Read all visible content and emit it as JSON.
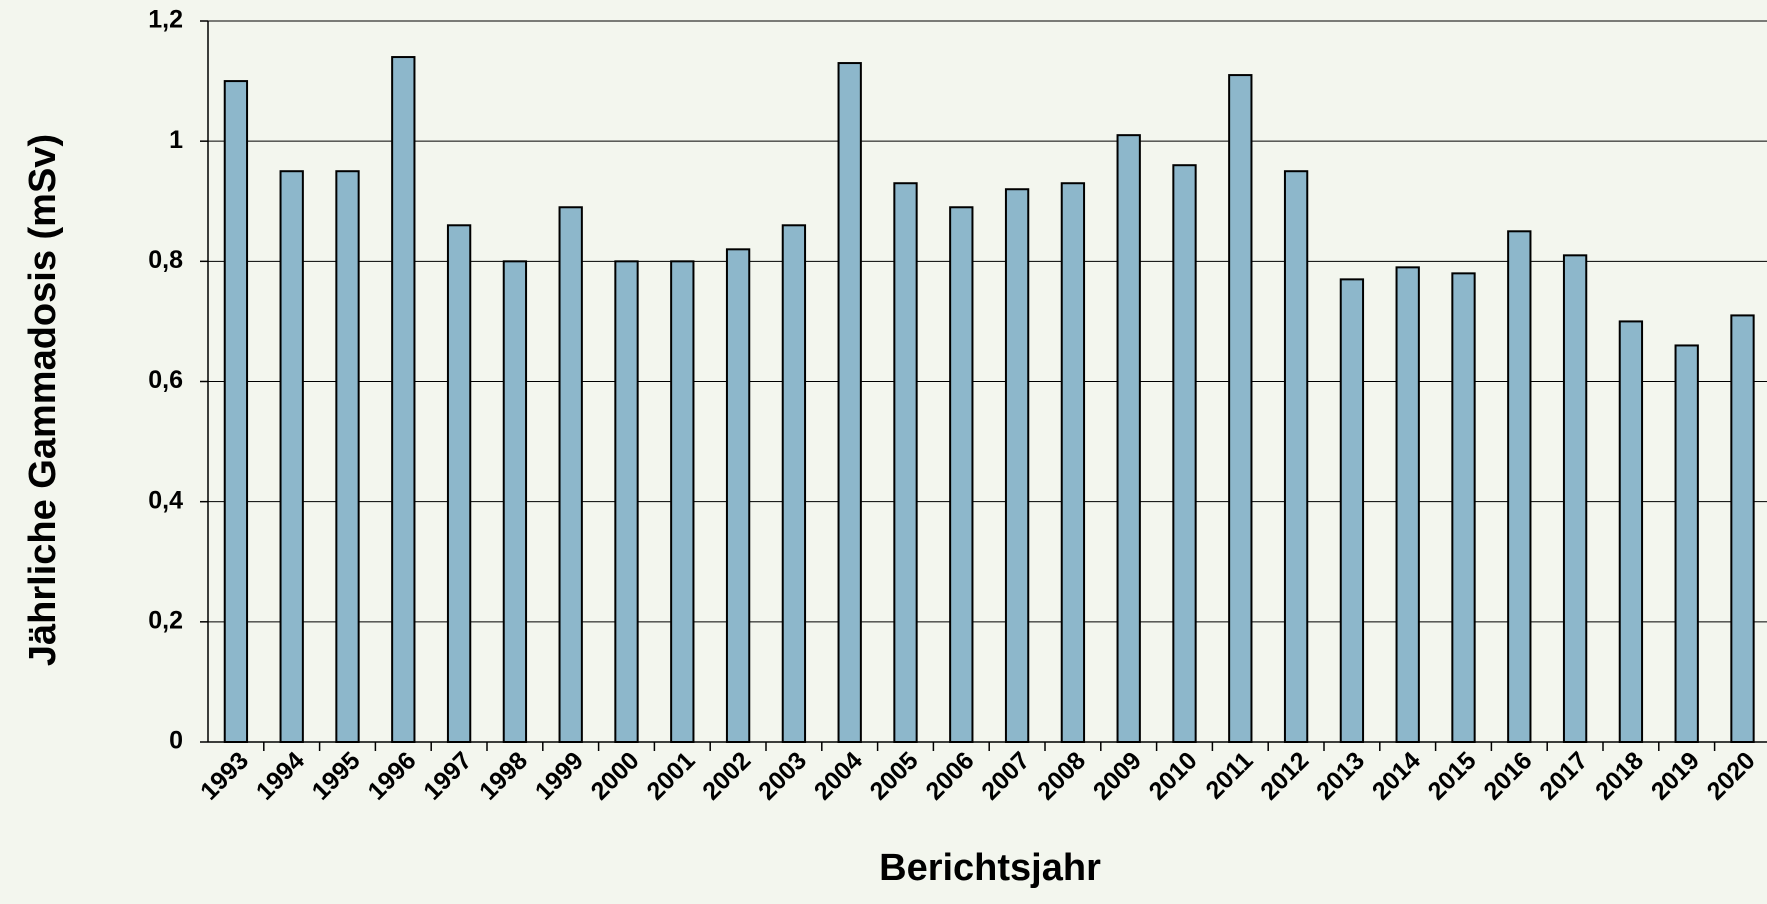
{
  "chart_data": {
    "type": "bar",
    "categories": [
      "1993",
      "1994",
      "1995",
      "1996",
      "1997",
      "1998",
      "1999",
      "2000",
      "2001",
      "2002",
      "2003",
      "2004",
      "2005",
      "2006",
      "2007",
      "2008",
      "2009",
      "2010",
      "2011",
      "2012",
      "2013",
      "2014",
      "2015",
      "2016",
      "2017",
      "2018",
      "2019",
      "2020"
    ],
    "values": [
      1.1,
      0.95,
      0.95,
      1.14,
      0.86,
      0.8,
      0.89,
      0.8,
      0.8,
      0.82,
      0.86,
      1.13,
      0.93,
      0.89,
      0.92,
      0.93,
      1.01,
      0.96,
      1.11,
      0.95,
      0.77,
      0.79,
      0.78,
      0.85,
      0.81,
      0.7,
      0.66,
      0.71
    ],
    "color": "#8db7cb",
    "x_label": "Berichtsjahr",
    "y_label": "Jährliche Gammadosis (mSv)",
    "ylim": [
      0,
      1.2
    ],
    "yticks": [
      0,
      {
        "value": 0.2,
        "label": "0,2"
      },
      {
        "value": 0.4,
        "label": "0,4"
      },
      {
        "value": 0.6,
        "label": "0,6"
      },
      {
        "value": 0.8,
        "label": "0,8"
      },
      1,
      {
        "value": 1.2,
        "label": "1,2"
      }
    ],
    "grid": true
  }
}
